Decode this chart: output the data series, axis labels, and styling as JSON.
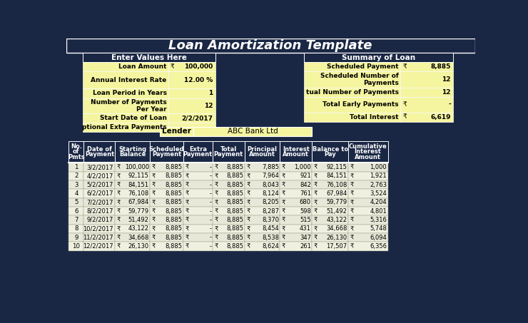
{
  "title": "Loan Amortization Template",
  "bg_dark": "#1a2744",
  "bg_yellow": "#f5f5a0",
  "rupee": "₹",
  "left_section_header": "Enter Values Here",
  "right_section_header": "Summary of Loan",
  "lender_label": "Lender",
  "lender_value": "ABC Bank Ltd",
  "col_headers": [
    "No.\nof\nPmts",
    "Date of\nPayment",
    "Starting\nBalance",
    "Scheduled\nPayment",
    "Extra\nPayment",
    "Total\nPayment",
    "Principal\nAmount",
    "Interest\nAmount",
    "Balance to\nPay",
    "Cumulative\nInterest\nAmount"
  ],
  "table_data": [
    [
      1,
      "3/2/2017",
      "100,000",
      "8,885",
      "-",
      "8,885",
      "7,885",
      "1,000",
      "92,115",
      "1,000"
    ],
    [
      2,
      "4/2/2017",
      "92,115",
      "8,885",
      "-",
      "8,885",
      "7,964",
      "921",
      "84,151",
      "1,921"
    ],
    [
      3,
      "5/2/2017",
      "84,151",
      "8,885",
      "-",
      "8,885",
      "8,043",
      "842",
      "76,108",
      "2,763"
    ],
    [
      4,
      "6/2/2017",
      "76,108",
      "8,885",
      "-",
      "8,885",
      "8,124",
      "761",
      "67,984",
      "3,524"
    ],
    [
      5,
      "7/2/2017",
      "67,984",
      "8,885",
      "-",
      "8,885",
      "8,205",
      "680",
      "59,779",
      "4,204"
    ],
    [
      6,
      "8/2/2017",
      "59,779",
      "8,885",
      "-",
      "8,885",
      "8,287",
      "598",
      "51,492",
      "4,801"
    ],
    [
      7,
      "9/2/2017",
      "51,492",
      "8,885",
      "-",
      "8,885",
      "8,370",
      "515",
      "43,122",
      "5,316"
    ],
    [
      8,
      "10/2/2017",
      "43,122",
      "8,885",
      "-",
      "8,885",
      "8,454",
      "431",
      "34,668",
      "5,748"
    ],
    [
      9,
      "11/2/2017",
      "34,668",
      "8,885",
      "-",
      "8,885",
      "8,538",
      "347",
      "26,130",
      "6,094"
    ],
    [
      10,
      "12/2/2017",
      "26,130",
      "8,885",
      "-",
      "8,885",
      "8,624",
      "261",
      "17,507",
      "6,356"
    ]
  ]
}
